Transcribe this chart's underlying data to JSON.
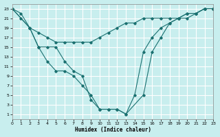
{
  "xlabel": "Humidex (Indice chaleur)",
  "bg_color": "#c8eeee",
  "grid_color": "#ffffff",
  "line_color": "#1a7070",
  "xlim": [
    0,
    23
  ],
  "ylim": [
    0,
    24
  ],
  "xticks": [
    0,
    1,
    2,
    3,
    4,
    5,
    6,
    7,
    8,
    9,
    10,
    11,
    12,
    13,
    14,
    15,
    16,
    17,
    18,
    19,
    20,
    21,
    22,
    23
  ],
  "yticks": [
    1,
    3,
    5,
    7,
    9,
    11,
    13,
    15,
    17,
    19,
    21,
    23
  ],
  "line1_x": [
    0,
    1,
    2,
    3,
    4,
    5,
    6,
    7,
    8,
    9,
    10,
    11,
    12,
    13,
    14,
    15,
    16,
    17,
    18,
    19,
    20,
    21,
    22,
    23
  ],
  "line1_y": [
    23,
    22,
    19,
    18,
    17,
    16,
    16,
    16,
    16,
    16,
    17,
    18,
    19,
    20,
    20,
    21,
    21,
    21,
    21,
    21,
    22,
    22,
    23,
    23
  ],
  "line2_x": [
    0,
    1,
    2,
    3,
    4,
    5,
    6,
    7,
    8,
    9,
    10,
    11,
    12,
    13,
    15,
    16,
    17,
    18,
    19,
    20,
    21,
    22,
    23
  ],
  "line2_y": [
    23,
    21,
    19,
    15,
    12,
    10,
    10,
    9,
    7,
    5,
    2,
    2,
    2,
    1,
    5,
    14,
    17,
    20,
    21,
    21,
    22,
    23,
    23
  ],
  "line3_x": [
    0,
    2,
    3,
    4,
    5,
    6,
    7,
    8,
    9,
    10,
    11,
    12,
    13,
    14,
    15,
    16,
    17,
    18,
    19,
    20,
    21,
    22,
    23
  ],
  "line3_y": [
    23,
    19,
    15,
    15,
    15,
    12,
    10,
    9,
    4,
    2,
    2,
    2,
    1,
    5,
    14,
    17,
    19,
    20,
    21,
    22,
    22,
    23,
    23
  ]
}
